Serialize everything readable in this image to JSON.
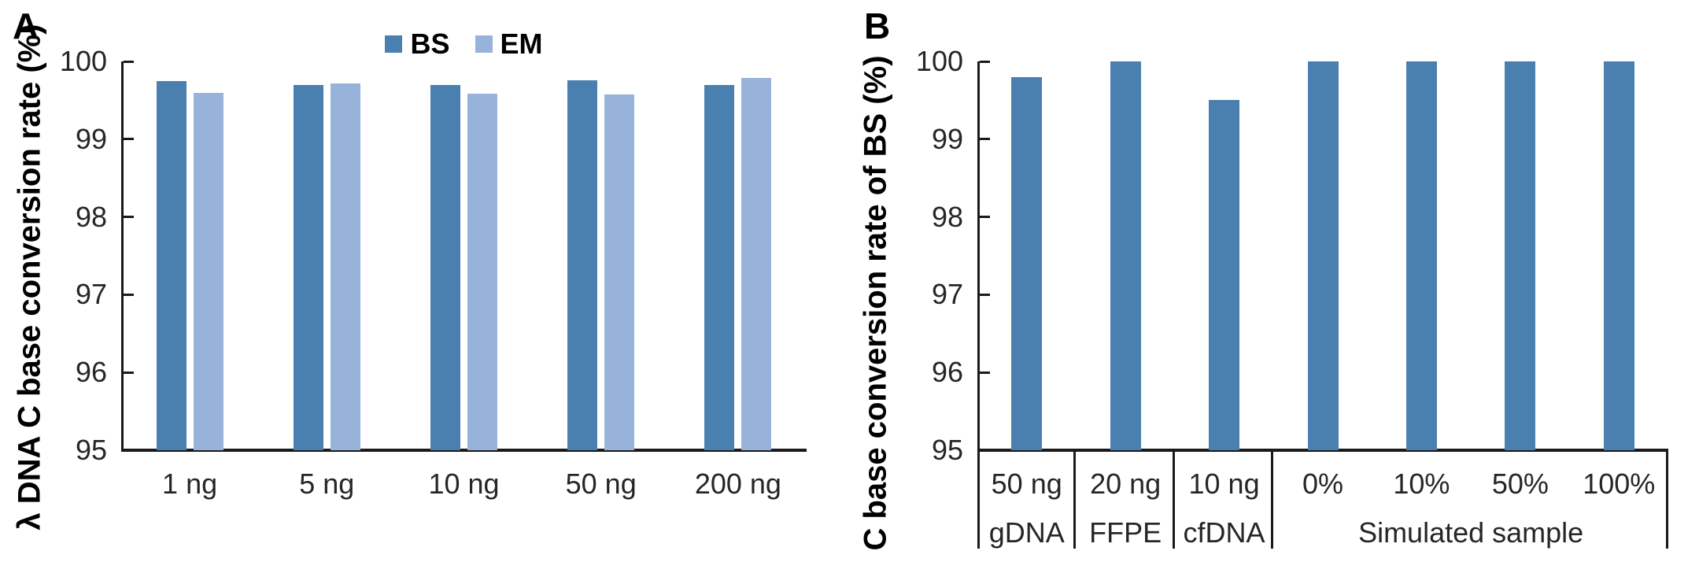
{
  "chart_data": [
    {
      "type": "bar",
      "panel": "A",
      "title": "A",
      "ylabel": "λ DNA C base conversion rate (%)",
      "xlabel": "",
      "ylim": [
        95,
        100
      ],
      "yticks": [
        95,
        96,
        97,
        98,
        99,
        100
      ],
      "grid": false,
      "legend_position": "top-center",
      "categories": [
        "1 ng",
        "5 ng",
        "10 ng",
        "50 ng",
        "200 ng"
      ],
      "series": [
        {
          "name": "BS",
          "color": "#4a80b0",
          "values": [
            99.75,
            99.7,
            99.7,
            99.76,
            99.7
          ]
        },
        {
          "name": "EM",
          "color": "#98b3d9",
          "values": [
            99.6,
            99.72,
            99.58,
            99.57,
            99.79
          ]
        }
      ]
    },
    {
      "type": "bar",
      "panel": "B",
      "title": "B",
      "ylabel": "C base conversion rate of BS (%)",
      "xlabel": "",
      "ylim": [
        95,
        100
      ],
      "yticks": [
        95,
        96,
        97,
        98,
        99,
        100
      ],
      "grid": false,
      "legend_position": "none",
      "categories": [
        "50 ng",
        "20 ng",
        "10 ng",
        "0%",
        "10%",
        "50%",
        "100%"
      ],
      "category_groups": [
        {
          "label": "gDNA",
          "span": 1
        },
        {
          "label": "FFPE",
          "span": 1
        },
        {
          "label": "cfDNA",
          "span": 1
        },
        {
          "label": "Simulated sample",
          "span": 4
        }
      ],
      "series": [
        {
          "name": "BS",
          "color": "#4a80b0",
          "values": [
            99.8,
            100,
            99.5,
            100,
            100,
            100,
            100
          ]
        }
      ]
    }
  ],
  "colors": {
    "bar_dark": "#4a80b0",
    "bar_light": "#98b3d9",
    "axis": "#1a1a1a"
  }
}
